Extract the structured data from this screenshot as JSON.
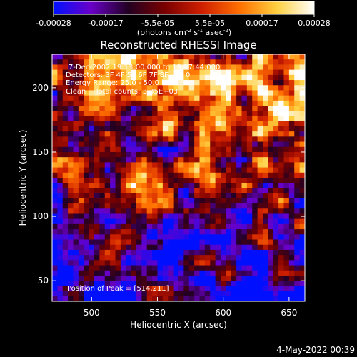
{
  "colorbar": {
    "ticks": [
      "-0.00028",
      "-0.00017",
      "-5.5e-05",
      "5.5e-05",
      "0.00017",
      "0.00028"
    ],
    "units_main": "(photons cm",
    "units_sup1": "-2",
    "units_mid1": " s",
    "units_sup2": "-1",
    "units_mid2": " asec",
    "units_sup3": "-2",
    "units_end": ")",
    "colors": [
      "#0010ff",
      "#6a00c8",
      "#220022",
      "#7a0000",
      "#d02000",
      "#ff7000",
      "#ffd040",
      "#ffffff"
    ]
  },
  "header": {
    "line1": "7-Dec-2002 19:13:00.000 to 19:17:44.000",
    "line2": "Detectors: 3F 4F 5F 6F 7F 8F, Att 0",
    "line3": "Energy Range: 25.0 - 50.0 keV",
    "line4": "Clean    Total counts: 3.35E+03",
    "peak": "Position of Peak = [514,211]"
  },
  "footer": {
    "date": "4-May-2022 00:39"
  },
  "chart_data": {
    "type": "heatmap",
    "title": "Reconstructed RHESSI Image",
    "xlabel": "Heliocentric X (arcsec)",
    "ylabel": "Heliocentric Y (arcsec)",
    "xlim": [
      470,
      662
    ],
    "ylim": [
      34,
      226
    ],
    "xticks": [
      500,
      550,
      600,
      650
    ],
    "yticks": [
      50,
      100,
      150,
      200
    ],
    "peak": [
      514,
      211
    ],
    "zlim": [
      -0.00028,
      0.00028
    ]
  }
}
